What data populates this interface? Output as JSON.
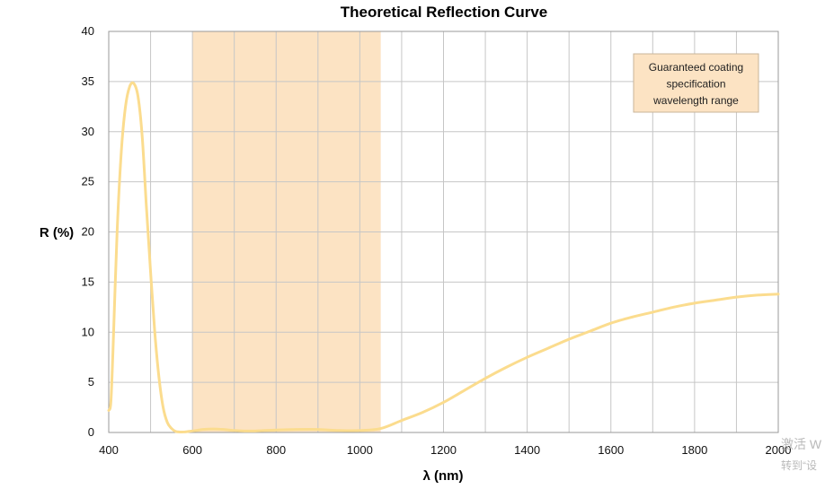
{
  "chart_data": {
    "type": "line",
    "title": "Theoretical Reflection Curve",
    "xlabel": "λ (nm)",
    "ylabel": "R (%)",
    "xlim": [
      400,
      2000
    ],
    "ylim": [
      0,
      40
    ],
    "x_ticks": [
      400,
      600,
      800,
      1000,
      1200,
      1400,
      1600,
      1800,
      2000
    ],
    "x_tick_labels": [
      "400",
      "600",
      "800",
      "1000",
      "1200",
      "1400",
      "1600",
      "1800",
      "2000"
    ],
    "y_ticks": [
      0,
      5,
      10,
      15,
      20,
      25,
      30,
      35,
      40
    ],
    "y_tick_labels": [
      "0",
      "5",
      "10",
      "15",
      "20",
      "25",
      "30",
      "35",
      "40"
    ],
    "grid": true,
    "highlight_band": {
      "x_start": 600,
      "x_end": 1050,
      "label": "Guaranteed coating specification wavelength range",
      "label_lines": [
        "Guaranteed coating",
        "specification",
        "wavelength range"
      ],
      "color": "#fce3c3",
      "legend_placement": "top-right"
    },
    "series": [
      {
        "color": "#fbdc8e",
        "x": [
          400,
          405,
          410,
          420,
          430,
          440,
          450,
          460,
          470,
          480,
          490,
          500,
          510,
          520,
          530,
          540,
          550,
          560,
          570,
          580,
          590,
          600,
          610,
          625,
          650,
          675,
          700,
          725,
          750,
          800,
          850,
          900,
          950,
          1000,
          1050,
          1100,
          1150,
          1200,
          1250,
          1300,
          1350,
          1400,
          1450,
          1500,
          1550,
          1600,
          1650,
          1700,
          1750,
          1800,
          1850,
          1900,
          1950,
          2000
        ],
        "y": [
          2.2,
          3.0,
          8.0,
          20.0,
          28.0,
          32.5,
          34.5,
          34.8,
          33.5,
          29.5,
          22.5,
          16.0,
          10.0,
          5.5,
          2.5,
          1.0,
          0.4,
          0.1,
          0.05,
          0.05,
          0.1,
          0.15,
          0.2,
          0.3,
          0.35,
          0.3,
          0.2,
          0.15,
          0.15,
          0.25,
          0.3,
          0.3,
          0.2,
          0.2,
          0.4,
          1.2,
          2.0,
          3.0,
          4.2,
          5.4,
          6.5,
          7.5,
          8.4,
          9.3,
          10.1,
          10.9,
          11.5,
          12.0,
          12.5,
          12.9,
          13.2,
          13.5,
          13.7,
          13.8
        ]
      }
    ]
  },
  "watermark": {
    "line1": "激活 W",
    "line2": "转到“设"
  }
}
